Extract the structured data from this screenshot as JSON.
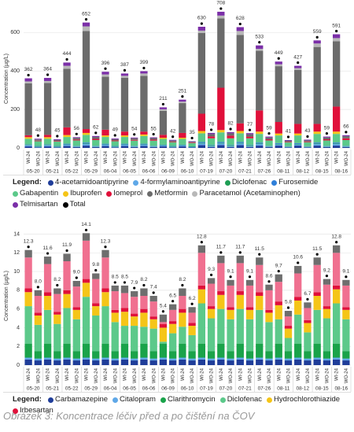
{
  "chart_data": [
    {
      "type": "stacked-bar",
      "y_label": "Concentration (µg/L)",
      "legend_title": "Legend:",
      "grid": true,
      "categories": [
        "WI-24",
        "WO-24",
        "WI-24",
        "WO-24",
        "WI-24",
        "WO-24",
        "WI-24",
        "WO-24",
        "WI-24",
        "WO-24",
        "WI-24",
        "WO-24",
        "WI-24",
        "WO-24",
        "WI-24",
        "WO-24",
        "WI-24",
        "WO-24",
        "WI-24",
        "WO-24",
        "WI-24",
        "WO-24",
        "WI-24",
        "WO-24",
        "WI-24",
        "WO-24",
        "WI-24",
        "WO-24",
        "WI-24",
        "WO-24",
        "WI-24",
        "WO-24",
        "WI-24",
        "WO-24"
      ],
      "groups": [
        "05-20",
        "05-21",
        "05-22",
        "05-29",
        "06-04",
        "06-05",
        "06-06",
        "06-09",
        "06-10",
        "07-19",
        "07-20",
        "07-21",
        "07-26",
        "08-11",
        "08-12",
        "08-15",
        "08-16"
      ],
      "ylim": [
        0,
        720
      ],
      "yticks": [
        0,
        200,
        400,
        600
      ],
      "series": [
        {
          "name": "4-acetamidoantipyrine",
          "color": "#1f3d99",
          "values": [
            8,
            3,
            8,
            3,
            10,
            4,
            12,
            4,
            10,
            3,
            10,
            4,
            10,
            4,
            8,
            3,
            8,
            2,
            15,
            5,
            15,
            5,
            15,
            5,
            12,
            4,
            12,
            3,
            12,
            3,
            12,
            4,
            12,
            4
          ]
        },
        {
          "name": "4-formylaminoantipyrine",
          "color": "#5fa8e8",
          "values": [
            5,
            3,
            5,
            3,
            6,
            3,
            8,
            3,
            6,
            3,
            6,
            3,
            6,
            3,
            4,
            3,
            4,
            2,
            8,
            4,
            8,
            4,
            8,
            4,
            8,
            3,
            6,
            2,
            6,
            2,
            8,
            3,
            8,
            3
          ]
        },
        {
          "name": "Diclofenac",
          "color": "#1f9e55",
          "values": [
            2,
            2,
            2,
            2,
            2,
            2,
            3,
            2,
            2,
            2,
            2,
            2,
            2,
            2,
            2,
            2,
            2,
            2,
            3,
            3,
            3,
            3,
            3,
            3,
            3,
            2,
            3,
            2,
            3,
            2,
            3,
            2,
            3,
            2
          ]
        },
        {
          "name": "Furosemide",
          "color": "#2f7fd9",
          "values": [
            3,
            2,
            3,
            2,
            4,
            2,
            5,
            2,
            4,
            2,
            4,
            2,
            4,
            2,
            3,
            2,
            3,
            2,
            5,
            3,
            5,
            3,
            5,
            3,
            5,
            2,
            4,
            2,
            4,
            2,
            5,
            2,
            5,
            2
          ]
        },
        {
          "name": "Gabapentin",
          "color": "#5cc98a",
          "values": [
            30,
            25,
            30,
            23,
            35,
            28,
            40,
            30,
            35,
            25,
            35,
            27,
            40,
            27,
            30,
            20,
            30,
            17,
            45,
            35,
            50,
            35,
            45,
            35,
            45,
            28,
            40,
            20,
            40,
            21,
            45,
            28,
            45,
            30
          ]
        },
        {
          "name": "Ibuprofen",
          "color": "#f5c518",
          "values": [
            8,
            0,
            8,
            0,
            10,
            0,
            10,
            0,
            8,
            0,
            8,
            0,
            8,
            0,
            6,
            0,
            6,
            0,
            12,
            0,
            12,
            0,
            12,
            0,
            12,
            0,
            10,
            0,
            10,
            0,
            12,
            0,
            12,
            0
          ]
        },
        {
          "name": "Iomeprol",
          "color": "#e0103a",
          "values": [
            10,
            3,
            12,
            3,
            40,
            5,
            20,
            6,
            30,
            4,
            20,
            4,
            15,
            5,
            15,
            3,
            25,
            3,
            90,
            10,
            220,
            14,
            40,
            9,
            110,
            6,
            60,
            3,
            50,
            4,
            40,
            6,
            130,
            9
          ]
        },
        {
          "name": "Metformin",
          "color": "#6b6b6b",
          "values": [
            270,
            6,
            270,
            5,
            305,
            8,
            510,
            10,
            275,
            6,
            280,
            8,
            290,
            8,
            125,
            5,
            155,
            4,
            420,
            12,
            360,
            12,
            460,
            12,
            310,
            9,
            290,
            5,
            280,
            5,
            400,
            9,
            340,
            11
          ]
        },
        {
          "name": "Paracetamol (Acetaminophen)",
          "color": "#b8b8b8",
          "values": [
            10,
            0,
            10,
            0,
            15,
            0,
            24,
            0,
            12,
            0,
            10,
            0,
            12,
            0,
            8,
            0,
            8,
            0,
            12,
            0,
            15,
            0,
            20,
            0,
            10,
            0,
            10,
            0,
            10,
            0,
            18,
            0,
            16,
            0
          ]
        },
        {
          "name": "Telmisartan",
          "color": "#7b2fa8",
          "values": [
            16,
            4,
            16,
            4,
            17,
            4,
            20,
            5,
            14,
            4,
            12,
            4,
            12,
            4,
            10,
            4,
            10,
            3,
            20,
            6,
            20,
            6,
            20,
            6,
            18,
            5,
            14,
            4,
            12,
            4,
            16,
            5,
            20,
            5
          ]
        }
      ],
      "totals": {
        "name": "Total",
        "color": "#000000",
        "values": [
          362,
          48,
          364,
          45,
          444,
          56,
          652,
          62,
          396,
          49,
          387,
          54,
          399,
          55,
          211,
          42,
          251,
          35,
          630,
          78,
          708,
          82,
          628,
          77,
          533,
          59,
          449,
          41,
          427,
          43,
          559,
          59,
          591,
          66
        ]
      }
    },
    {
      "type": "stacked-bar",
      "y_label": "Concentration (µg/L)",
      "legend_title": "Legend:",
      "grid": true,
      "categories": [
        "WI-24",
        "WO-24",
        "WI-24",
        "WO-24",
        "WI-24",
        "WO-24",
        "WI-24",
        "WO-24",
        "WI-24",
        "WO-24",
        "WI-24",
        "WO-24",
        "WI-24",
        "WO-24",
        "WI-24",
        "WO-24",
        "WI-24",
        "WO-24",
        "WI-24",
        "WO-24",
        "WI-24",
        "WO-24",
        "WI-24",
        "WO-24",
        "WI-24",
        "WO-24",
        "WI-24",
        "WO-24",
        "WI-24",
        "WO-24",
        "WI-24",
        "WO-24",
        "WI-24",
        "WO-24"
      ],
      "groups": [
        "05-20",
        "05-21",
        "05-22",
        "05-29",
        "06-04",
        "06-05",
        "06-06",
        "06-09",
        "06-10",
        "07-19",
        "07-20",
        "07-21",
        "07-26",
        "08-11",
        "08-12",
        "08-15",
        "08-16"
      ],
      "ylim": [
        0,
        14.8
      ],
      "yticks": [
        0,
        2,
        4,
        6,
        8,
        10,
        12,
        14
      ],
      "series": [
        {
          "name": "Carbamazepine",
          "color": "#1f3d99",
          "values": [
            0.6,
            0.5,
            0.6,
            0.5,
            0.6,
            0.5,
            0.6,
            0.5,
            0.6,
            0.5,
            0.6,
            0.5,
            0.6,
            0.5,
            0.6,
            0.5,
            0.6,
            0.5,
            0.6,
            0.5,
            0.6,
            0.5,
            0.6,
            0.5,
            0.6,
            0.5,
            0.6,
            0.5,
            0.6,
            0.5,
            0.6,
            0.5,
            0.6,
            0.5
          ]
        },
        {
          "name": "Citalopram",
          "color": "#5fa8e8",
          "values": [
            0.2,
            0.2,
            0.2,
            0.2,
            0.2,
            0.2,
            0.2,
            0.2,
            0.2,
            0.2,
            0.2,
            0.2,
            0.2,
            0.2,
            0.2,
            0.2,
            0.2,
            0.2,
            0.2,
            0.2,
            0.2,
            0.2,
            0.2,
            0.2,
            0.2,
            0.2,
            0.2,
            0.2,
            0.2,
            0.2,
            0.2,
            0.2,
            0.2,
            0.2
          ]
        },
        {
          "name": "Clarithromycin",
          "color": "#1aa34a",
          "values": [
            1.5,
            0.8,
            1.5,
            0.8,
            1.5,
            0.8,
            1.5,
            0.8,
            1.5,
            0.8,
            1.5,
            0.8,
            1.5,
            0.8,
            1.5,
            0.8,
            1.5,
            0.8,
            1.5,
            0.8,
            1.5,
            0.8,
            1.5,
            0.8,
            1.5,
            0.8,
            1.5,
            0.8,
            1.5,
            0.8,
            1.5,
            0.8,
            1.5,
            0.8
          ]
        },
        {
          "name": "Diclofenac",
          "color": "#5cc98a",
          "values": [
            4.0,
            2.8,
            3.6,
            2.9,
            3.8,
            3.4,
            5.0,
            3.8,
            4.0,
            3.1,
            1.9,
            2.7,
            1.8,
            2.4,
            0.2,
            1.9,
            1.8,
            1.7,
            4.3,
            3.5,
            3.7,
            3.4,
            3.7,
            3.4,
            3.6,
            3.1,
            2.6,
            1.4,
            3.1,
            2.0,
            3.6,
            3.5,
            4.3,
            3.4
          ]
        },
        {
          "name": "Hydrochlorothiazide",
          "color": "#f5c518",
          "values": [
            1.5,
            1.0,
            1.5,
            1.0,
            1.5,
            1.0,
            1.5,
            1.0,
            1.5,
            1.0,
            1.5,
            1.0,
            1.5,
            1.0,
            1.5,
            1.0,
            1.5,
            1.0,
            1.5,
            1.0,
            1.5,
            1.0,
            1.5,
            1.0,
            1.5,
            1.0,
            1.5,
            1.0,
            1.5,
            1.0,
            1.5,
            1.0,
            1.5,
            1.0
          ]
        },
        {
          "name": "Irbesartan",
          "color": "#e0103a",
          "values": [
            0.4,
            0.3,
            0.4,
            0.3,
            0.4,
            0.3,
            0.4,
            0.3,
            0.4,
            0.3,
            0.4,
            0.3,
            0.4,
            0.3,
            0.4,
            0.3,
            0.4,
            0.3,
            0.4,
            0.3,
            0.4,
            0.3,
            0.4,
            0.3,
            0.4,
            0.3,
            0.4,
            0.3,
            0.4,
            0.3,
            0.4,
            0.3,
            0.4,
            0.3
          ]
        },
        {
          "color": "#f07090",
          "values": [
            3.3,
            1.8,
            3.0,
            1.9,
            3.1,
            2.2,
            4.1,
            2.6,
            3.3,
            2.0,
            1.6,
            1.8,
            1.4,
            1.6,
            0.2,
            1.2,
            1.4,
            1.1,
            3.5,
            2.4,
            3.0,
            2.3,
            3.0,
            2.3,
            2.9,
            2.1,
            2.1,
            1.0,
            2.5,
            1.3,
            2.9,
            2.3,
            3.5,
            2.3
          ]
        },
        {
          "color": "#6e6e6e",
          "values": [
            0.8,
            0.6,
            0.8,
            0.6,
            0.8,
            0.6,
            0.8,
            0.6,
            0.8,
            0.6,
            0.8,
            0.6,
            0.8,
            0.6,
            0.8,
            0.6,
            0.8,
            0.6,
            0.8,
            0.6,
            0.8,
            0.6,
            0.8,
            0.6,
            0.8,
            0.6,
            0.8,
            0.6,
            0.8,
            0.6,
            0.8,
            0.6,
            0.8,
            0.6
          ]
        }
      ],
      "totals": {
        "color": "#000000",
        "values": [
          12.3,
          8.0,
          11.6,
          8.2,
          11.9,
          9.0,
          14.1,
          9.8,
          12.3,
          8.5,
          8.5,
          7.9,
          8.2,
          7.4,
          5.4,
          6.5,
          8.2,
          6.2,
          12.8,
          9.3,
          11.7,
          9.1,
          11.7,
          9.1,
          11.5,
          8.6,
          9.7,
          5.8,
          10.6,
          6.7,
          11.5,
          9.2,
          12.8,
          9.1
        ],
        "value_labels": [
          "12.3",
          "8.0",
          "11.6",
          "8.2",
          "11.9",
          "9.0",
          "14.1",
          "9.8",
          "12.3",
          "8.5",
          "8.5",
          "7.9",
          "8.2",
          "7.4",
          "5.4",
          "6.5",
          "8.2",
          "6.2",
          "12.8",
          "9.3",
          "11.7",
          "9.1",
          "11.7",
          "9.1",
          "11.5",
          "8.6",
          "9.7",
          "5.8",
          "10.6",
          "6.7",
          "11.5",
          "9.2",
          "12.8",
          "9.1"
        ]
      }
    }
  ],
  "caption": "Obrázek 3: Koncentrace léčiv před a po čištění na ČOV"
}
